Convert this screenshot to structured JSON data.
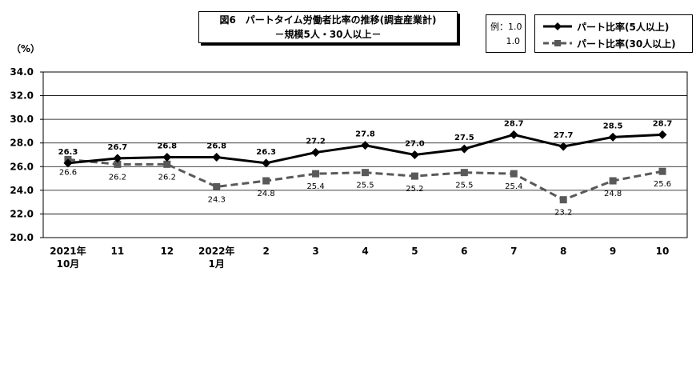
{
  "title": {
    "line1": "図6　パートタイム労働者比率の推移(調査産業計)",
    "line2": "－規模5人・30人以上－"
  },
  "example": {
    "label": "例：",
    "top_value": "1.0",
    "bottom_value": "1.0"
  },
  "unit": "（%）",
  "chart_data": {
    "type": "line",
    "categories": [
      [
        "2021年",
        "10月"
      ],
      [
        "11"
      ],
      [
        "12"
      ],
      [
        "2022年",
        "1月"
      ],
      [
        "2"
      ],
      [
        "3"
      ],
      [
        "4"
      ],
      [
        "5"
      ],
      [
        "6"
      ],
      [
        "7"
      ],
      [
        "8"
      ],
      [
        "9"
      ],
      [
        "10"
      ]
    ],
    "ylim": [
      20.0,
      34.0
    ],
    "yticks": [
      20.0,
      22.0,
      24.0,
      26.0,
      28.0,
      30.0,
      32.0,
      34.0
    ],
    "ytick_labels": [
      "20.0",
      "22.0",
      "24.0",
      "26.0",
      "28.0",
      "30.0",
      "32.0",
      "34.0"
    ],
    "grid": true,
    "legend_position": "top-right",
    "series": [
      {
        "name": "パート比率(5人以上)",
        "values": [
          26.3,
          26.7,
          26.8,
          26.8,
          26.3,
          27.2,
          27.8,
          27.0,
          27.5,
          28.7,
          27.7,
          28.5,
          28.7
        ],
        "labels": [
          "26.3",
          "26.7",
          "26.8",
          "26.8",
          "26.3",
          "27.2",
          "27.8",
          "27.0",
          "27.5",
          "28.7",
          "27.7",
          "28.5",
          "28.7"
        ],
        "color": "#000000",
        "marker": "diamond",
        "line_style": "solid"
      },
      {
        "name": "パート比率(30人以上)",
        "values": [
          26.6,
          26.2,
          26.2,
          24.3,
          24.8,
          25.4,
          25.5,
          25.2,
          25.5,
          25.4,
          23.2,
          24.8,
          25.6
        ],
        "labels": [
          "26.6",
          "26.2",
          "26.2",
          "24.3",
          "24.8",
          "25.4",
          "25.5",
          "25.2",
          "25.5",
          "25.4",
          "23.2",
          "24.8",
          "25.6"
        ],
        "color": "#595959",
        "marker": "square",
        "line_style": "dashed"
      }
    ]
  }
}
